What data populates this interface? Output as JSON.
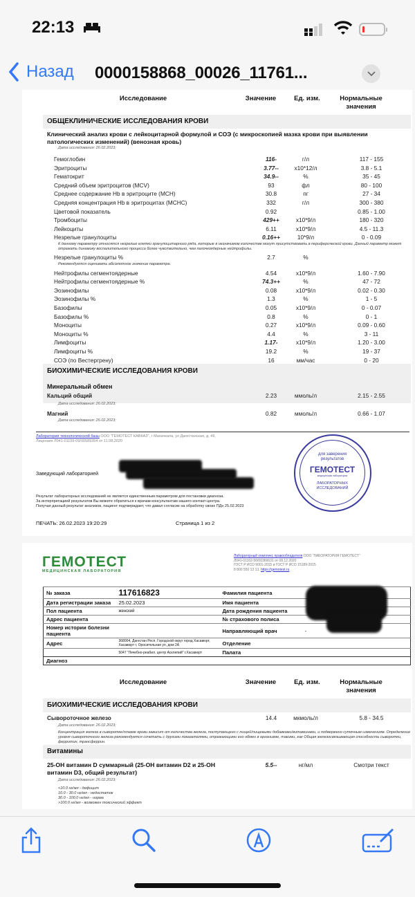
{
  "status": {
    "time": "22:13",
    "icons": [
      "bed-icon",
      "signal-icon",
      "wifi-icon",
      "battery-low-icon"
    ]
  },
  "nav": {
    "back": "Назад",
    "title": "0000158868_00026_11761..."
  },
  "columns": {
    "test": "Исследование",
    "value": "Значение",
    "unit": "Ед. изм.",
    "norm1": "Нормальные",
    "norm2": "значения"
  },
  "page1": {
    "section1": "ОБЩЕКЛИНИЧЕСКИЕ ИССЛЕДОВАНИЯ КРОВИ",
    "subtitle": "Клинический анализ крови с лейкоцитарной формулой и СОЭ (с микроскопией мазка крови при выявлении патологических изменений) (венозная кровь)",
    "date": "Дата исследования: 26.02.2023;",
    "rows": [
      {
        "name": "Гемоглобин",
        "value": "116-",
        "unit": "г/л",
        "norm": "117 - 155",
        "flag": true
      },
      {
        "name": "Эритроциты",
        "value": "3.77--",
        "unit": "x10*12/л",
        "norm": "3.8 - 5.1",
        "flag": true
      },
      {
        "name": "Гематокрит",
        "value": "34.9--",
        "unit": "%",
        "norm": "35 - 45",
        "flag": true
      },
      {
        "name": "Средний объем эритроцитов (MCV)",
        "value": "93",
        "unit": "фл",
        "norm": "80 - 100"
      },
      {
        "name": "Среднее содержание Hb в эритроците (MCH)",
        "value": "30.8",
        "unit": "пг",
        "norm": "27 - 34"
      },
      {
        "name": "Средняя концентрация Hb в эритроцитах (MCHC)",
        "value": "332",
        "unit": "г/л",
        "norm": "300 - 380"
      },
      {
        "name": "Цветовой показатель",
        "value": "0.92",
        "unit": "",
        "norm": "0.85 - 1.00"
      },
      {
        "name": "Тромбоциты",
        "value": "429++",
        "unit": "x10*9/л",
        "norm": "180 - 320",
        "flag": true
      },
      {
        "name": "Лейкоциты",
        "value": "6.11",
        "unit": "x10*9/л",
        "norm": "4.5 - 11.3"
      },
      {
        "name": " Незрелые гранулоциты",
        "value": "0.16++",
        "unit": "10*9/л",
        "norm": "0 - 0.09",
        "flag": true
      },
      {
        "note": "К данному параметру относятся незрелые клетки гранулоцитарного ряда, которые  в незначимом количестве могут присутствовать в периферической крови. Данный параметр может отражать динамику воспалительного процесса более чувствительно, чем палочкоядерные нейтрофилы."
      },
      {
        "name": " Незрелые гранулоциты %",
        "value": "2.7",
        "unit": "%",
        "norm": ""
      },
      {
        "note": "Рекомендуется оценивать абсолютное значение параметра."
      },
      {
        "name": "Нейтрофилы сегментоядерные",
        "value": "4.54",
        "unit": "x10*9/л",
        "norm": "1.60 - 7.90"
      },
      {
        "name": "Нейтрофилы сегментоядерные %",
        "value": "74.3++",
        "unit": "%",
        "norm": "47 - 72",
        "flag": true
      },
      {
        "name": "Эозинофилы",
        "value": "0.08",
        "unit": "x10*9/л",
        "norm": "0.02 - 0.30"
      },
      {
        "name": "Эозинофилы %",
        "value": "1.3",
        "unit": "%",
        "norm": "1 - 5"
      },
      {
        "name": "Базофилы",
        "value": "0.05",
        "unit": "x10*9/л",
        "norm": "0 - 0.07"
      },
      {
        "name": "Базофилы %",
        "value": "0.8",
        "unit": "%",
        "norm": "0 - 1"
      },
      {
        "name": "Моноциты",
        "value": "0.27",
        "unit": "x10*9/л",
        "norm": "0.09 - 0.60"
      },
      {
        "name": "Моноциты %",
        "value": "4.4",
        "unit": "%",
        "norm": "3 - 11"
      },
      {
        "name": "Лимфоциты",
        "value": "1.17-",
        "unit": "x10*9/л",
        "norm": "1.20 - 3.00",
        "flag": true
      },
      {
        "name": "Лимфоциты %",
        "value": "19.2",
        "unit": "%",
        "norm": "19 - 37"
      },
      {
        "name": "СОЭ (по Вестергрену)",
        "value": "16",
        "unit": "мм/час",
        "norm": "0 - 20"
      }
    ],
    "section2": "БИОХИМИЧЕСКИЕ ИССЛЕДОВАНИЯ КРОВИ",
    "subsection": "Минеральный обмен",
    "calcium": {
      "name": "Кальций общий",
      "value": "2.23",
      "unit": "ммоль/л",
      "norm": "2.15 - 2.55",
      "date": "Дата исследования: 26.02.2023;"
    },
    "magnesium": {
      "name": "Магний",
      "value": "0.82",
      "unit": "ммоль/л",
      "norm": "0.66 - 1.07",
      "date": "Дата исследования: 26.02.2023;"
    },
    "lab_link": "Лаборатория технологической базы",
    "lab_info": " ООО \"ГЕМОТЕСТ КАВКАЗ\", г Махачкала, ул Дагестанская, д. 49,",
    "license": "Лицензия Л041-01159-09/00589354 от 11.08.2020",
    "head_label": "Заведующий лабораторией",
    "disclaimer": [
      "Результат лабораторных исследований не является единственным параметром для постановки диагноза.",
      "За интерпретацией результатов Вы можете обратиться к врачам-консультантам нашего контакт-центра.",
      "Получая данный результат анализов, пациент подтверждает, что давал согласие на обработку своих ПДн 25.02.2023"
    ],
    "stamp": {
      "top": "для заверения",
      "top2": "результатов",
      "brand": "ГЕМОТЕСТ",
      "tag": "медицинская лаборатория",
      "bottom1": "ЛАБОРАТОРНЫХ",
      "bottom2": "ИССЛЕДОВАНИЙ"
    },
    "print": "ПЕЧАТЬ: 26.02.2023 19:20:29",
    "pagenum": "Страница 1 из 2"
  },
  "page2": {
    "logo": "ГЕМОТЕСТ",
    "logo_sub": "МЕДИЦИНСКАЯ ЛАБОРАТОРИЯ",
    "owner_link": "Лабораторный комплекс правообладателя",
    "owner": " ООО \"ЛАБОРАТОРИЯ ГЕМОТЕСТ\"",
    "owner_lines": [
      "Л041-01162-50/00369631 от 08.12.2020",
      "ГОСТ Р ИСО 9001-2015 и ГОСТ Р ИСО 15189-2015",
      "8 800 550 13 13, "
    ],
    "site": "https://gemotest.ru",
    "info": {
      "order_label": "№ заказа",
      "order": "117616823",
      "reg_label": "Дата регистрации заказа",
      "reg": "25.02.2023",
      "sex_label": "Пол пациента",
      "sex": "женский",
      "addr_label": "Адрес пациента",
      "hist_label": "Номер истории болезни пациента",
      "address_label": "Адрес",
      "address": "368004, Дагестан Респ, Городской округ город Хасавюрт, Хасавюрт г, Оросительная ул, дом 2А",
      "clinic": "5047 \"Лечебно-реабил. центр Асклепий\" г.Хасавюрт",
      "diag_label": "Диагноз",
      "surname_label": "Фамилия пациента",
      "name_label": "Имя пациента",
      "dob_label": "Дата рождения пациента",
      "policy_label": "№ страхового полиса",
      "doctor_label": "Направляющий врач",
      "doctor": "-",
      "dept_label": "Отделение",
      "ward_label": "Палата"
    },
    "section": "БИОХИМИЧЕСКИЕ ИССЛЕДОВАНИЯ КРОВИ",
    "iron": {
      "name": "Сывороточное железо",
      "value": "14.4",
      "unit": "мкмоль/л",
      "norm": "5.8 - 34.5",
      "date": "Дата исследования: 26.02.2023;",
      "note": "Концентрация железа в сыворотке/плазме крови зависит от количества железа, поступающего с пищей/пищевыми добавками/витаминами, и подвержено суточным изменениям. Определение уровня сывороточного железа рекомендуется сочетать с другими показателями, отражающими его обмен в организме, такими, как Общая железосвязывающая способность сыворотки, ферритин, трансферрин."
    },
    "vitamins": "Витамины",
    "vitd": {
      "name": "25-OH витамин D суммарный (25-OH витамин D2 и 25-OH витамин D3, общий результат)",
      "value": "5.5--",
      "unit": "нг/мл",
      "norm": "Смотри текст",
      "date": "Дата исследования: 26.02.2023;",
      "ranges": [
        "<10.0 нг/мл - дефицит",
        "10.0 - 30.0 нг/мл - недостаток",
        "30.0 - 100.0 нг/мл - норма",
        ">100.0 нг/мл - возможен токсический эффект"
      ]
    }
  },
  "toolbar": {
    "icons": [
      "share-icon",
      "search-icon",
      "markup-icon",
      "edit-icon"
    ]
  },
  "colors": {
    "accent": "#3478f6",
    "brand_green": "#2e8b3a",
    "stamp": "#3a3a9e",
    "battery": "#e33333"
  }
}
